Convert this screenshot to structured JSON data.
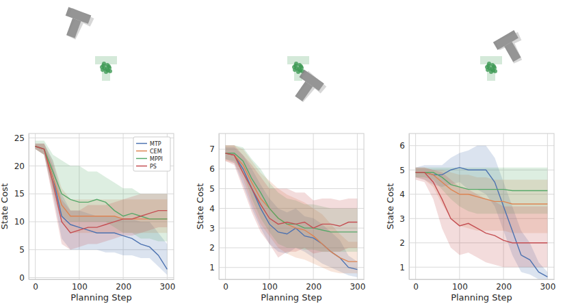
{
  "chart_data": [
    {
      "type": "line",
      "x_label": "Planning Step",
      "y_label": "State Cost",
      "x": [
        0,
        20,
        40,
        60,
        80,
        100,
        120,
        140,
        160,
        180,
        200,
        220,
        240,
        260,
        280,
        300
      ],
      "xlim": [
        -15,
        315
      ],
      "xticks": [
        0,
        100,
        200,
        300
      ],
      "ylim": [
        -0.3,
        25.8
      ],
      "yticks": [
        0,
        5,
        10,
        15,
        20,
        25
      ],
      "grid": true,
      "legend": "upper right",
      "series": [
        {
          "name": "MTP",
          "color": "#4c72b0",
          "values": [
            23.5,
            23,
            18,
            11,
            9.5,
            9,
            8.5,
            8,
            8,
            8,
            7.5,
            7,
            6,
            5.5,
            4,
            1.5
          ],
          "lower": [
            23,
            22,
            15,
            7,
            5,
            5,
            5,
            5,
            4.5,
            4.5,
            4,
            4,
            3.5,
            3.5,
            2,
            0.5
          ],
          "upper": [
            24,
            24,
            21,
            15,
            12,
            12,
            11.5,
            11,
            11,
            11,
            10.5,
            10.5,
            10,
            10,
            8,
            6
          ]
        },
        {
          "name": "CEM",
          "color": "#dd8452",
          "values": [
            23.5,
            23,
            18,
            13,
            11,
            11,
            11,
            11,
            11,
            11,
            10.5,
            10.5,
            10.5,
            10.5,
            10.5,
            10.5
          ],
          "lower": [
            23,
            22,
            15,
            10,
            8,
            8,
            8,
            8,
            8,
            8,
            8,
            8,
            8,
            8,
            8,
            8
          ],
          "upper": [
            24,
            24,
            21,
            16,
            14,
            14,
            14,
            14,
            14,
            14,
            14,
            14,
            14,
            14,
            14,
            14
          ]
        },
        {
          "name": "MPPI",
          "color": "#55a868",
          "values": [
            23.5,
            23,
            19,
            15,
            14,
            13.5,
            13.5,
            14,
            13.5,
            12,
            11,
            11.5,
            11,
            10.5,
            10.5,
            10.5
          ],
          "lower": [
            23,
            22,
            16,
            11,
            10,
            10,
            10,
            10,
            10,
            9,
            8,
            8,
            7,
            7,
            6.5,
            6.5
          ],
          "upper": [
            24.5,
            24.5,
            22,
            21,
            20,
            20,
            19,
            19,
            18,
            17,
            16,
            16,
            15,
            15,
            15,
            15
          ]
        },
        {
          "name": "PS",
          "color": "#c44e52",
          "values": [
            23.5,
            23,
            17,
            10,
            8,
            8.5,
            9,
            9,
            9.5,
            10,
            10.5,
            10.5,
            11,
            11.5,
            12,
            12
          ],
          "lower": [
            23,
            22,
            14,
            6,
            5,
            5.5,
            6,
            6,
            6.5,
            7,
            7.5,
            7.5,
            8,
            8.5,
            9,
            9
          ],
          "upper": [
            24,
            24,
            20,
            14,
            12,
            12,
            13,
            13,
            13,
            13.5,
            14,
            14.5,
            15,
            15,
            15,
            15
          ]
        }
      ]
    },
    {
      "type": "line",
      "x_label": "Planning Step",
      "y_label": "State Cost",
      "x": [
        0,
        20,
        40,
        60,
        80,
        100,
        120,
        140,
        160,
        180,
        200,
        220,
        240,
        260,
        280,
        300
      ],
      "xlim": [
        -15,
        315
      ],
      "xticks": [
        0,
        100,
        200,
        300
      ],
      "ylim": [
        0.4,
        7.8
      ],
      "yticks": [
        1,
        2,
        3,
        4,
        5,
        6,
        7
      ],
      "grid": true,
      "series": [
        {
          "color": "#4c72b0",
          "values": [
            6.8,
            6.7,
            6,
            5,
            4,
            3.2,
            2.8,
            2.7,
            3,
            2.6,
            2.5,
            2.2,
            1.8,
            1.5,
            1,
            0.9
          ],
          "lower": [
            6.5,
            6.3,
            5.2,
            4,
            3,
            2.2,
            1.8,
            1.7,
            2,
            1.8,
            1.5,
            1.2,
            1,
            0.8,
            0.6,
            0.5
          ],
          "upper": [
            7.1,
            7.1,
            6.7,
            6,
            5.2,
            4.5,
            4,
            3.8,
            4,
            3.6,
            3.5,
            3.2,
            2.8,
            2.4,
            1.6,
            1.3
          ]
        },
        {
          "color": "#dd8452",
          "values": [
            6.8,
            6.7,
            6.2,
            5.3,
            4.5,
            4,
            3.5,
            3.2,
            3,
            2.9,
            2.6,
            2.2,
            1.8,
            1.5,
            1.3,
            1.3
          ],
          "lower": [
            6.4,
            6.3,
            5.5,
            4.2,
            3.2,
            2.6,
            2,
            1.7,
            1.5,
            1.4,
            1.2,
            1,
            0.8,
            0.7,
            0.7,
            0.7
          ],
          "upper": [
            7.2,
            7.2,
            7,
            6.4,
            5.8,
            5.4,
            5,
            4.7,
            4.5,
            4.3,
            4,
            3.7,
            3.2,
            2.7,
            2.3,
            2.3
          ]
        },
        {
          "color": "#55a868",
          "values": [
            6.8,
            6.8,
            6.4,
            5.5,
            4.8,
            4,
            3.5,
            3.2,
            3.2,
            3,
            3,
            2.9,
            2.8,
            2.8,
            2.8,
            2.8
          ],
          "lower": [
            6.5,
            6.4,
            5.8,
            4.5,
            3.5,
            2.8,
            2.2,
            2,
            2,
            1.9,
            1.9,
            1.8,
            1.8,
            1.8,
            1.8,
            1.8
          ],
          "upper": [
            7.2,
            7.2,
            7.1,
            6.5,
            6,
            5.3,
            4.8,
            4.5,
            4.4,
            4.2,
            4.2,
            4.1,
            4,
            4,
            4,
            4
          ]
        },
        {
          "color": "#c44e52",
          "values": [
            6.8,
            6.7,
            5.8,
            5,
            4.2,
            3.5,
            3.2,
            3.3,
            3.2,
            3.3,
            3,
            3.2,
            3.2,
            3.1,
            3.3,
            3.3
          ],
          "lower": [
            6.4,
            6.2,
            5,
            3.8,
            2.8,
            2.2,
            1.5,
            1.8,
            1.8,
            2,
            1.7,
            1.8,
            1.8,
            1.8,
            2,
            2
          ],
          "upper": [
            7.2,
            7.2,
            6.7,
            6.2,
            5.6,
            5,
            5,
            5,
            4.8,
            4.8,
            4.4,
            4.5,
            4.5,
            4.4,
            4.5,
            4.5
          ]
        }
      ]
    },
    {
      "type": "line",
      "x_label": "Planning Step",
      "y_label": "State Cost",
      "x": [
        0,
        20,
        40,
        60,
        80,
        100,
        120,
        140,
        160,
        180,
        200,
        220,
        240,
        260,
        280,
        300
      ],
      "xlim": [
        -15,
        315
      ],
      "xticks": [
        0,
        100,
        200,
        300
      ],
      "ylim": [
        0.5,
        6.5
      ],
      "yticks": [
        1,
        2,
        3,
        4,
        5,
        6
      ],
      "grid": true,
      "series": [
        {
          "color": "#4c72b0",
          "values": [
            4.9,
            4.9,
            4.8,
            4.8,
            5,
            5.1,
            5,
            5,
            5,
            4.5,
            3.5,
            2.5,
            1.5,
            1.3,
            0.8,
            0.6
          ],
          "lower": [
            4.7,
            4.6,
            4.4,
            4.3,
            4.4,
            4.5,
            4.2,
            4.2,
            4,
            3.5,
            2.5,
            1.5,
            0.8,
            0.7,
            0.5,
            0.5
          ],
          "upper": [
            5.1,
            5.2,
            5.2,
            5.2,
            5.5,
            5.7,
            5.8,
            6,
            6,
            5.5,
            4.5,
            3.5,
            2.5,
            2,
            1.2,
            0.8
          ]
        },
        {
          "color": "#dd8452",
          "values": [
            4.9,
            4.9,
            4.8,
            4.5,
            4.2,
            4,
            4,
            3.9,
            3.8,
            3.7,
            3.7,
            3.6,
            3.6,
            3.6,
            3.6,
            3.6
          ],
          "lower": [
            4.7,
            4.6,
            4.3,
            3.6,
            3,
            2.7,
            2.6,
            2.5,
            2.5,
            2.5,
            2.5,
            2.4,
            2.4,
            2.4,
            2.4,
            2.4
          ],
          "upper": [
            5.1,
            5.1,
            5,
            5,
            4.9,
            4.8,
            4.8,
            4.7,
            4.7,
            4.6,
            4.6,
            4.6,
            4.6,
            4.6,
            4.6,
            4.6
          ]
        },
        {
          "color": "#55a868",
          "values": [
            4.9,
            4.9,
            4.9,
            4.7,
            4.4,
            4.3,
            4.2,
            4.2,
            4.2,
            4.2,
            4.2,
            4.15,
            4.15,
            4.15,
            4.15,
            4.15
          ],
          "lower": [
            4.7,
            4.7,
            4.6,
            4.2,
            3.8,
            3.5,
            3.3,
            3.2,
            3.2,
            3.2,
            3.2,
            3.2,
            3.2,
            3.2,
            3.2,
            3.2
          ],
          "upper": [
            5.1,
            5.1,
            5.1,
            5.1,
            5.1,
            5.1,
            5.1,
            5.1,
            5.1,
            5.1,
            5.1,
            5.1,
            5.1,
            5.1,
            5.1,
            5.1
          ]
        },
        {
          "color": "#c44e52",
          "values": [
            4.9,
            4.9,
            4.5,
            3.8,
            3,
            2.7,
            2.8,
            2.6,
            2.4,
            2.3,
            2.1,
            2,
            2,
            2,
            2,
            2
          ],
          "lower": [
            4.6,
            4.5,
            3.8,
            2.6,
            1.8,
            1.5,
            1.6,
            1.4,
            1.2,
            1.1,
            1,
            1,
            1,
            1,
            1,
            1
          ],
          "upper": [
            5.1,
            5.1,
            5,
            4.9,
            4.6,
            4.3,
            4.2,
            4,
            3.8,
            3.7,
            3.5,
            3.5,
            3.5,
            3.5,
            3.5,
            3.5
          ]
        }
      ]
    }
  ]
}
